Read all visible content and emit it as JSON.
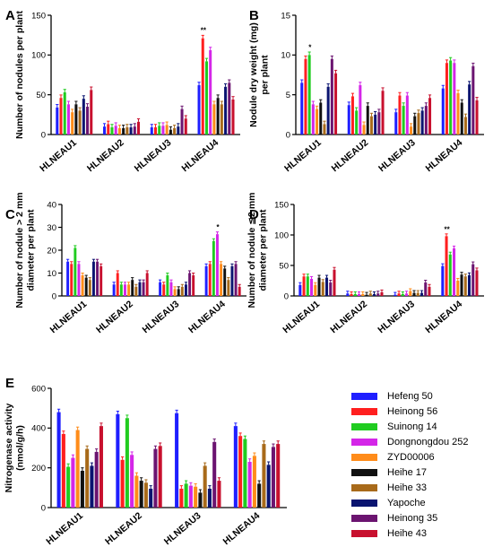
{
  "colors": [
    "#1f1fff",
    "#ff1f1f",
    "#20cc20",
    "#d426e8",
    "#ff8c1a",
    "#111111",
    "#a86a1a",
    "#0a1470",
    "#6b1470",
    "#c8102e"
  ],
  "legend": [
    "Hefeng 50",
    "Heinong 56",
    "Suinong 14",
    "Dongnongdou 252",
    "ZYD00006",
    "Heihe 17",
    "Heihe 33",
    "Yapoche",
    "Heinong 35",
    "Heihe 43"
  ],
  "chart_data": [
    {
      "panel": "A",
      "type": "bar",
      "ylabel": "Number of nodules per plant",
      "ylim": [
        0,
        150
      ],
      "yticks": [
        0,
        50,
        100,
        150
      ],
      "categories": [
        "HLNEAU1",
        "HLNEAU2",
        "HLNEAU3",
        "HLNEAU4"
      ],
      "series_values": [
        [
          34,
          10,
          9,
          62
        ],
        [
          46,
          13,
          9,
          121
        ],
        [
          53,
          9,
          11,
          92
        ],
        [
          38,
          11,
          11,
          106
        ],
        [
          28,
          8,
          12,
          38
        ],
        [
          38,
          8,
          6,
          46
        ],
        [
          30,
          9,
          8,
          38
        ],
        [
          45,
          9,
          10,
          60
        ],
        [
          35,
          10,
          32,
          65
        ],
        [
          56,
          16,
          20,
          44
        ]
      ],
      "significance": [
        {
          "series": 1,
          "category": 3,
          "mark": "**"
        }
      ]
    },
    {
      "panel": "B",
      "type": "bar",
      "ylabel": "Nodule dry weight (mg) per plant",
      "ylim": [
        0,
        15
      ],
      "yticks": [
        0,
        5,
        10,
        15
      ],
      "categories": [
        "HLNEAU1",
        "HLNEAU2",
        "HLNEAU3",
        "HLNEAU4"
      ],
      "series_values": [
        [
          6.5,
          3.7,
          2.8,
          5.8
        ],
        [
          9.5,
          4.8,
          4.9,
          9.0
        ],
        [
          10.0,
          3.0,
          3.6,
          9.3
        ],
        [
          3.8,
          6.2,
          4.9,
          9.0
        ],
        [
          3.2,
          1.2,
          1.0,
          5.2
        ],
        [
          4.0,
          3.6,
          2.3,
          4.0
        ],
        [
          1.3,
          2.3,
          2.7,
          2.2
        ],
        [
          6.0,
          2.5,
          3.0,
          6.3
        ],
        [
          9.5,
          2.8,
          3.6,
          8.6
        ],
        [
          7.7,
          5.5,
          4.6,
          4.3
        ]
      ],
      "significance": [
        {
          "series": 2,
          "category": 0,
          "mark": "*"
        }
      ]
    },
    {
      "panel": "C",
      "type": "bar",
      "ylabel": "Number of nodule > 2 mm diameter per plant",
      "ylim": [
        0,
        40
      ],
      "yticks": [
        0,
        10,
        20,
        30,
        40
      ],
      "categories": [
        "HLNEAU1",
        "HLNEAU2",
        "HLNEAU3",
        "HLNEAU4"
      ],
      "series_values": [
        [
          15,
          5,
          6,
          13
        ],
        [
          14,
          10,
          5,
          14
        ],
        [
          21,
          5,
          9,
          24
        ],
        [
          14,
          5,
          6,
          27
        ],
        [
          9,
          5,
          3,
          14
        ],
        [
          8,
          7,
          3,
          12
        ],
        [
          7,
          4,
          4,
          7
        ],
        [
          15,
          6,
          5,
          13
        ],
        [
          15,
          6,
          10,
          14
        ],
        [
          13,
          10,
          9,
          4
        ]
      ],
      "significance": [
        {
          "series": 3,
          "category": 3,
          "mark": "*"
        }
      ]
    },
    {
      "panel": "D",
      "type": "bar",
      "ylabel": "Number of nodule ≦2 mm diameter per plant",
      "ylim": [
        0,
        150
      ],
      "yticks": [
        0,
        50,
        100,
        150
      ],
      "categories": [
        "HLNEAU1",
        "HLNEAU2",
        "HLNEAU3",
        "HLNEAU4"
      ],
      "series_values": [
        [
          18,
          4,
          2,
          49
        ],
        [
          32,
          3,
          4,
          98
        ],
        [
          32,
          3,
          3,
          68
        ],
        [
          28,
          3,
          4,
          78
        ],
        [
          18,
          3,
          8,
          25
        ],
        [
          30,
          2,
          5,
          35
        ],
        [
          23,
          4,
          5,
          32
        ],
        [
          30,
          3,
          5,
          34
        ],
        [
          22,
          4,
          22,
          52
        ],
        [
          43,
          6,
          15,
          42
        ]
      ],
      "significance": [
        {
          "series": 1,
          "category": 3,
          "mark": "**"
        }
      ]
    },
    {
      "panel": "E",
      "type": "bar",
      "ylabel": "Nitrogenase activity (nmol/g/h)",
      "ylim": [
        0,
        600
      ],
      "yticks": [
        0,
        200,
        400,
        600
      ],
      "categories": [
        "HLNEAU1",
        "HLNEAU2",
        "HLNEAU3",
        "HLNEAU4"
      ],
      "series_values": [
        [
          480,
          470,
          475,
          410
        ],
        [
          370,
          240,
          95,
          360
        ],
        [
          205,
          450,
          120,
          345
        ],
        [
          250,
          265,
          110,
          230
        ],
        [
          390,
          160,
          105,
          260
        ],
        [
          185,
          135,
          75,
          120
        ],
        [
          295,
          125,
          210,
          320
        ],
        [
          210,
          95,
          95,
          215
        ],
        [
          280,
          295,
          330,
          305
        ],
        [
          410,
          310,
          135,
          320
        ]
      ],
      "significance": []
    }
  ]
}
